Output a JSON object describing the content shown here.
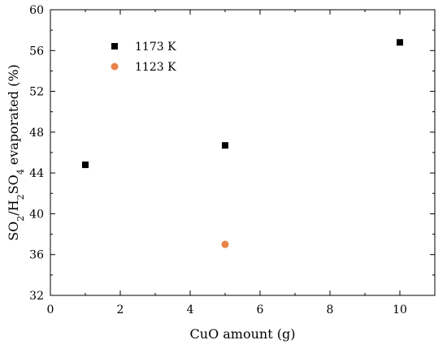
{
  "chart_data": {
    "type": "scatter",
    "xlabel": "CuO amount (g)",
    "ylabel": {
      "parts": [
        {
          "t": "SO",
          "sub": false
        },
        {
          "t": "2",
          "sub": true
        },
        {
          "t": "/H",
          "sub": false
        },
        {
          "t": "2",
          "sub": true
        },
        {
          "t": "SO",
          "sub": false
        },
        {
          "t": "4",
          "sub": true
        },
        {
          "t": " evaporated (%)",
          "sub": false
        }
      ]
    },
    "xlim": [
      0,
      11
    ],
    "ylim": [
      32,
      60
    ],
    "xticks": [
      0,
      2,
      4,
      6,
      8,
      10
    ],
    "yticks": [
      32,
      36,
      40,
      44,
      48,
      52,
      56,
      60
    ],
    "grid": false,
    "legend_position": "top-left",
    "series": [
      {
        "name": "1173 K",
        "marker": "square",
        "color": "#000000",
        "points": [
          {
            "x": 1,
            "y": 44.8
          },
          {
            "x": 5,
            "y": 46.7
          },
          {
            "x": 10,
            "y": 56.8
          }
        ]
      },
      {
        "name": "1123 K",
        "marker": "circle",
        "color": "#E8834A",
        "points": [
          {
            "x": 5,
            "y": 37.0
          }
        ]
      }
    ]
  }
}
